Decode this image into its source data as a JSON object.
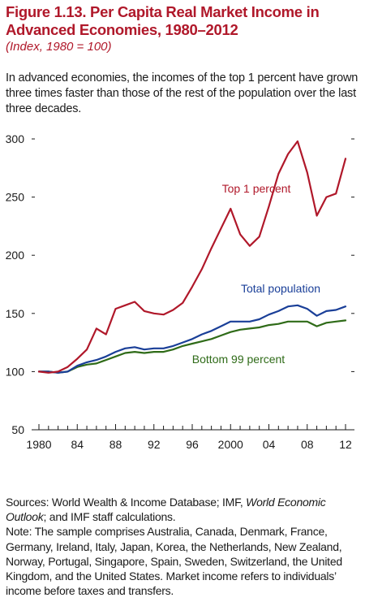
{
  "figure": {
    "title": "Figure 1.13. Per Capita Real Market Income in Advanced Economies, 1980–2012",
    "subtitle": "(Index, 1980 = 100)",
    "lead": "In advanced economies, the incomes of the top 1 percent have grown three times faster than those of the rest of the population over the last three decades."
  },
  "notes": {
    "sources_prefix": "Sources: World Wealth & Income Database; IMF, ",
    "sources_italic": "World Economic Outlook",
    "sources_suffix": "; and IMF staff calculations.",
    "note": "Note: The sample comprises Australia, Canada, Denmark, France, Germany, Ireland, Italy, Japan, Korea, the Netherlands, New Zealand, Norway, Portugal, Singapore, Spain, Sweden, Switzerland, the United Kingdom, and the United States. Market income refers to individuals’ income before taxes and transfers."
  },
  "chart_data": {
    "type": "line",
    "title": "Per Capita Real Market Income in Advanced Economies, 1980–2012",
    "xlabel": "",
    "ylabel": "",
    "xlim": [
      1980,
      2012
    ],
    "ylim": [
      50,
      300
    ],
    "y_ticks": [
      50,
      100,
      150,
      200,
      250,
      300
    ],
    "x_ticks": [
      {
        "value": 1980,
        "label": "1980"
      },
      {
        "value": 1984,
        "label": "84"
      },
      {
        "value": 1988,
        "label": "88"
      },
      {
        "value": 1992,
        "label": "92"
      },
      {
        "value": 1996,
        "label": "96"
      },
      {
        "value": 2000,
        "label": "2000"
      },
      {
        "value": 2004,
        "label": "04"
      },
      {
        "value": 2008,
        "label": "08"
      },
      {
        "value": 2012,
        "label": "12"
      }
    ],
    "grid": false,
    "legend": "inline labels",
    "x": [
      1980,
      1981,
      1982,
      1983,
      1984,
      1985,
      1986,
      1987,
      1988,
      1989,
      1990,
      1991,
      1992,
      1993,
      1994,
      1995,
      1996,
      1997,
      1998,
      1999,
      2000,
      2001,
      2002,
      2003,
      2004,
      2005,
      2006,
      2007,
      2008,
      2009,
      2010,
      2011,
      2012
    ],
    "series": [
      {
        "name": "Top 1 percent",
        "color": "#b0182a",
        "values": [
          100,
          99,
          100,
          104,
          111,
          119,
          137,
          132,
          154,
          157,
          160,
          152,
          150,
          149,
          153,
          159,
          173,
          188,
          206,
          223,
          240,
          218,
          208,
          216,
          242,
          270,
          287,
          298,
          271,
          234,
          250,
          253,
          283
        ]
      },
      {
        "name": "Total population",
        "color": "#1a3f98",
        "values": [
          100,
          100,
          99,
          100,
          105,
          108,
          110,
          113,
          117,
          120,
          121,
          119,
          120,
          120,
          122,
          125,
          128,
          132,
          135,
          139,
          143,
          143,
          143,
          145,
          149,
          152,
          156,
          157,
          154,
          148,
          152,
          153,
          156
        ]
      },
      {
        "name": "Bottom 99 percent",
        "color": "#2f6b18",
        "values": [
          100,
          100,
          99,
          100,
          104,
          106,
          107,
          110,
          113,
          116,
          117,
          116,
          117,
          117,
          119,
          122,
          124,
          126,
          128,
          131,
          134,
          136,
          137,
          138,
          140,
          141,
          143,
          143,
          143,
          139,
          142,
          143,
          144
        ]
      }
    ]
  }
}
